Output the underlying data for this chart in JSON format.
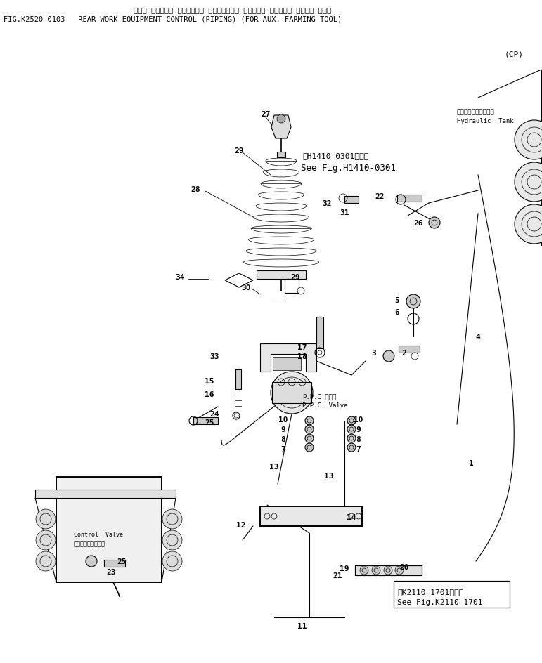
{
  "title_jp": "リヤー サキ・ワキ コントロール （パイピング） （ノウコウ サキ・ワキ ソチャク ヨウ）",
  "title_en": "FIG.K2520-0103   REAR WORK EQUIPMENT CONTROL (PIPING) (FOR AUX. FARMING TOOL)",
  "cp_label": "(CP)",
  "bg_color": "#ffffff",
  "line_color": "#000000",
  "text_color": "#000000",
  "fig_width": 7.71,
  "fig_height": 9.45,
  "dpi": 100
}
